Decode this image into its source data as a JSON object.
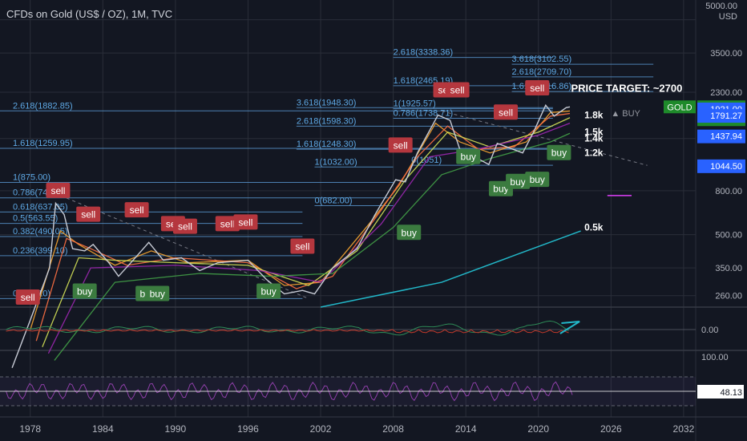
{
  "header": {
    "title": "CFDs on Gold (US$ / OZ), 1M, TVC"
  },
  "axis": {
    "top_value": "5000.00",
    "unit": "USD"
  },
  "colors": {
    "bg": "#131722",
    "grid": "#2a2e39",
    "fib": "#5b9bd5",
    "fib_text": "#5ea8e4",
    "sell": "#b5373e",
    "buy": "#3b7b3f",
    "price_tag": "#2a7d2a",
    "price_line": "#ffffff",
    "rsi": "#8e3fa8",
    "macd": "#2e8b57",
    "trend": "#22b7c8"
  },
  "chart_data": {
    "type": "line",
    "title": "CFDs on Gold (US$ / OZ), 1M, TVC",
    "y_scale": "log",
    "ylim": [
      230,
      5200
    ],
    "xlim": [
      1975.5,
      2033
    ],
    "x_ticks": [
      "1978",
      "1984",
      "1990",
      "1996",
      "2002",
      "2008",
      "2014",
      "2020",
      "2026",
      "2032"
    ],
    "y_ticks": [
      "5000.00",
      "3500.00",
      "2300.00",
      "1400.00",
      "800.00",
      "500.00",
      "350.00",
      "260.00"
    ],
    "price_series": {
      "name": "GOLD",
      "points": [
        [
          1976.5,
          120
        ],
        [
          1978,
          200
        ],
        [
          1979.6,
          350
        ],
        [
          1980.1,
          700
        ],
        [
          1980.8,
          620
        ],
        [
          1981.5,
          430
        ],
        [
          1982.5,
          420
        ],
        [
          1983.2,
          450
        ],
        [
          1984.5,
          370
        ],
        [
          1985.3,
          320
        ],
        [
          1986.5,
          380
        ],
        [
          1987.8,
          460
        ],
        [
          1989,
          380
        ],
        [
          1990.5,
          390
        ],
        [
          1992,
          340
        ],
        [
          1993.5,
          370
        ],
        [
          1996,
          380
        ],
        [
          1997.5,
          310
        ],
        [
          1999,
          265
        ],
        [
          2000.5,
          275
        ],
        [
          2001.5,
          265
        ],
        [
          2003,
          350
        ],
        [
          2005,
          430
        ],
        [
          2006.5,
          620
        ],
        [
          2008.2,
          900
        ],
        [
          2009,
          880
        ],
        [
          2010,
          1200
        ],
        [
          2011.7,
          1800
        ],
        [
          2012.7,
          1700
        ],
        [
          2013.5,
          1250
        ],
        [
          2015.9,
          1060
        ],
        [
          2016.6,
          1330
        ],
        [
          2018.7,
          1200
        ],
        [
          2019.6,
          1500
        ],
        [
          2020.6,
          2000
        ],
        [
          2021.3,
          1780
        ],
        [
          2022.3,
          1950
        ],
        [
          2022.6,
          1965
        ]
      ]
    },
    "ma_series": [
      {
        "color": "#f7a531",
        "points": [
          [
            1978,
            180
          ],
          [
            1980.5,
            520
          ],
          [
            1982,
            450
          ],
          [
            1985,
            360
          ],
          [
            1988,
            420
          ],
          [
            1991,
            370
          ],
          [
            1996,
            380
          ],
          [
            1999,
            290
          ],
          [
            2002,
            300
          ],
          [
            2006,
            560
          ],
          [
            2008.5,
            850
          ],
          [
            2011.5,
            1650
          ],
          [
            2013.5,
            1350
          ],
          [
            2016,
            1200
          ],
          [
            2019,
            1350
          ],
          [
            2021,
            1850
          ],
          [
            2022.6,
            1880
          ]
        ]
      },
      {
        "color": "#ff7043",
        "points": [
          [
            1978.5,
            160
          ],
          [
            1981,
            480
          ],
          [
            1983,
            430
          ],
          [
            1986,
            360
          ],
          [
            1990,
            390
          ],
          [
            1996,
            370
          ],
          [
            2000,
            280
          ],
          [
            2003,
            320
          ],
          [
            2007,
            650
          ],
          [
            2010,
            1150
          ],
          [
            2012.5,
            1600
          ],
          [
            2015,
            1250
          ],
          [
            2018,
            1280
          ],
          [
            2021,
            1780
          ],
          [
            2022.6,
            1830
          ]
        ]
      },
      {
        "color": "#d4e157",
        "points": [
          [
            1979,
            150
          ],
          [
            1982,
            390
          ],
          [
            1985,
            380
          ],
          [
            1990,
            370
          ],
          [
            1996,
            360
          ],
          [
            2001,
            290
          ],
          [
            2005,
            420
          ],
          [
            2009,
            900
          ],
          [
            2012.5,
            1500
          ],
          [
            2016,
            1280
          ],
          [
            2020,
            1500
          ],
          [
            2022.6,
            1750
          ]
        ]
      },
      {
        "color": "#9c27b0",
        "points": [
          [
            1979.5,
            140
          ],
          [
            1983,
            350
          ],
          [
            1990,
            360
          ],
          [
            1997,
            340
          ],
          [
            2002,
            300
          ],
          [
            2007,
            560
          ],
          [
            2011,
            1150
          ],
          [
            2015,
            1250
          ],
          [
            2020,
            1450
          ],
          [
            2022.6,
            1650
          ]
        ]
      },
      {
        "color": "#43a047",
        "points": [
          [
            1980,
            130
          ],
          [
            1985,
            300
          ],
          [
            1992,
            330
          ],
          [
            1998,
            320
          ],
          [
            2003,
            330
          ],
          [
            2008,
            540
          ],
          [
            2012,
            950
          ],
          [
            2016,
            1130
          ],
          [
            2021,
            1350
          ],
          [
            2022.6,
            1480
          ]
        ]
      }
    ],
    "trend_line": {
      "color": "#22b7c8",
      "points": [
        [
          2002,
          230
        ],
        [
          2012,
          300
        ],
        [
          2018,
          400
        ],
        [
          2023.5,
          520
        ]
      ]
    },
    "fib_levels": [
      {
        "label": "2.618(3338.36)",
        "value": 3338.36,
        "x0": 2008,
        "x1": 2021.2
      },
      {
        "label": "3.618(3102.55)",
        "value": 3102.55,
        "x0": 2017.8,
        "x1": 2029.5
      },
      {
        "label": "2.618(2709.70)",
        "value": 2709.7,
        "x0": 2017.8,
        "x1": 2029.5
      },
      {
        "label": "1.618(2465.19)",
        "value": 2465.19,
        "x0": 2008,
        "x1": 2021.2
      },
      {
        "label": "1.618(2316.86)",
        "value": 2316.86,
        "x0": 2017.8,
        "x1": 2029.5
      },
      {
        "label": "3.618(1948.30)",
        "value": 1948.3,
        "x0": 2000,
        "x1": 2021.2
      },
      {
        "label": "1(1925.57)",
        "value": 1925.57,
        "x0": 2008,
        "x1": 2021.2
      },
      {
        "label": "2.618(1882.85)",
        "value": 1882.85,
        "x0": 1975.5,
        "x1": 2021.2
      },
      {
        "label": "0.786(1738.71)",
        "value": 1738.71,
        "x0": 2008,
        "x1": 2021.2
      },
      {
        "label": "2.618(1598.30)",
        "value": 1598.3,
        "x0": 2000,
        "x1": 2021.2
      },
      {
        "label": "1.618(1259.95)",
        "value": 1259.95,
        "x0": 1975.5,
        "x1": 2021.2
      },
      {
        "label": "1.618(1248.30)",
        "value": 1248.3,
        "x0": 2000,
        "x1": 2021.2
      },
      {
        "label": "0(1051)",
        "value": 1051,
        "x0": 2009.5,
        "x1": 2021.2
      },
      {
        "label": "1(1032.00)",
        "value": 1032,
        "x0": 2001.5,
        "x1": 2008
      },
      {
        "label": "1(875.00)",
        "value": 875,
        "x0": 1975.5,
        "x1": 2008
      },
      {
        "label": "0.786(741.70)",
        "value": 741.7,
        "x0": 1975.5,
        "x1": 2008
      },
      {
        "label": "0(682.00)",
        "value": 682,
        "x0": 2001.5,
        "x1": 2008
      },
      {
        "label": "0.618(637.05)",
        "value": 637.05,
        "x0": 1975.5,
        "x1": 2000.5
      },
      {
        "label": "0.5(563.55)",
        "value": 563.55,
        "x0": 1975.5,
        "x1": 2000.5
      },
      {
        "label": "0.382(490.05)",
        "value": 490.05,
        "x0": 1975.5,
        "x1": 2000.5
      },
      {
        "label": "0.236(399.10)",
        "value": 399.1,
        "x0": 1975.5,
        "x1": 2000.5
      },
      {
        "label": "0(252.10)",
        "value": 252.1,
        "x0": 1975.5,
        "x1": 2000.5
      }
    ],
    "level_marks": [
      {
        "label": "1.8k",
        "value": 1800
      },
      {
        "label": "1.5k",
        "value": 1500
      },
      {
        "label": "1.4k",
        "value": 1400
      },
      {
        "label": "1.2k",
        "value": 1200
      },
      {
        "label": "0.5k",
        "value": 540
      }
    ],
    "annotations": {
      "price_target": "PRICE TARGET: ~2700",
      "buy_tag": "▲ BUY"
    },
    "signals": [
      {
        "type": "sell",
        "x": 1977.8,
        "y": 255
      },
      {
        "type": "sell",
        "x": 1980.3,
        "y": 800
      },
      {
        "type": "sell",
        "x": 1982.8,
        "y": 620
      },
      {
        "type": "sell",
        "x": 1986.8,
        "y": 650
      },
      {
        "type": "sell",
        "x": 1989.8,
        "y": 560
      },
      {
        "type": "sell",
        "x": 1990.8,
        "y": 545
      },
      {
        "type": "sell",
        "x": 1994.3,
        "y": 560
      },
      {
        "type": "sell",
        "x": 1995.8,
        "y": 570
      },
      {
        "type": "sell",
        "x": 2000.5,
        "y": 440
      },
      {
        "type": "sell",
        "x": 2012.3,
        "y": 2350
      },
      {
        "type": "sell",
        "x": 2013.3,
        "y": 2350
      },
      {
        "type": "sell",
        "x": 2008.6,
        "y": 1300
      },
      {
        "type": "sell",
        "x": 2019.9,
        "y": 2400
      },
      {
        "type": "sell",
        "x": 2017.3,
        "y": 1850
      },
      {
        "type": "buy",
        "x": 1982.5,
        "y": 272
      },
      {
        "type": "buy",
        "x": 1987.7,
        "y": 265
      },
      {
        "type": "buy",
        "x": 1988.5,
        "y": 265
      },
      {
        "type": "buy",
        "x": 1997.7,
        "y": 272
      },
      {
        "type": "buy",
        "x": 2009.3,
        "y": 510
      },
      {
        "type": "buy",
        "x": 2014.2,
        "y": 1150
      },
      {
        "type": "buy",
        "x": 2016.9,
        "y": 815
      },
      {
        "type": "buy",
        "x": 2018.3,
        "y": 880
      },
      {
        "type": "buy",
        "x": 2019.9,
        "y": 900
      },
      {
        "type": "buy",
        "x": 2021.7,
        "y": 1200
      }
    ],
    "badges": [
      {
        "label": "GOLD",
        "value": "1965.45",
        "sub": "16d 23h",
        "y": 1965.45,
        "style": "green"
      },
      {
        "value": "1921.00",
        "y": 1921,
        "style": "blue"
      },
      {
        "value": "1791.27",
        "y": 1791.27,
        "style": "blue"
      },
      {
        "value": "1437.94",
        "y": 1437.94,
        "style": "blue"
      },
      {
        "value": "1044.50",
        "y": 1044.5,
        "style": "blue"
      }
    ],
    "macd": {
      "zero_label": "0.00"
    },
    "rsi": {
      "top_label": "100.00",
      "value": "48.13"
    }
  }
}
